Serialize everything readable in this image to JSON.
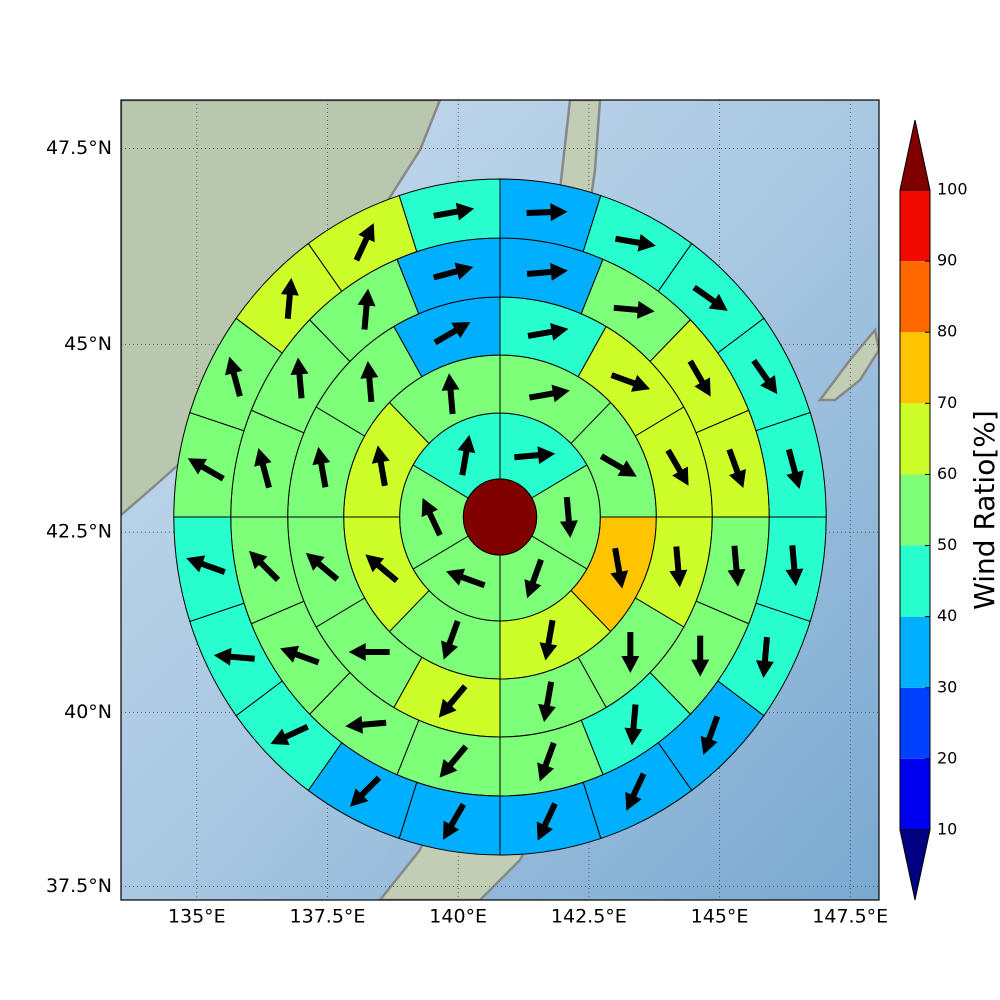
{
  "chart_data": {
    "type": "wind-rose-map",
    "xlim": [
      133.55,
      148.05
    ],
    "ylim": [
      37.3,
      48.1
    ],
    "xticks": [
      {
        "value": 135,
        "label": "135°E"
      },
      {
        "value": 137.5,
        "label": "137.5°E"
      },
      {
        "value": 140,
        "label": "140°E"
      },
      {
        "value": 142.5,
        "label": "142.5°E"
      },
      {
        "value": 145,
        "label": "145°E"
      },
      {
        "value": 147.5,
        "label": "147.5°E"
      }
    ],
    "yticks": [
      {
        "value": 37.5,
        "label": "37.5°N"
      },
      {
        "value": 40,
        "label": "40°N"
      },
      {
        "value": 42.5,
        "label": "42.5°N"
      },
      {
        "value": 45,
        "label": "45°N"
      },
      {
        "value": 47.5,
        "label": "47.5°N"
      }
    ],
    "grid": true,
    "center_color": "#800000",
    "rings": [
      {
        "values": [
          45,
          55,
          55,
          55,
          55,
          45
        ],
        "directions": [
          85,
          175,
          200,
          290,
          335,
          10
        ]
      },
      {
        "values": [
          55,
          55,
          75,
          65,
          55,
          65,
          65,
          55
        ],
        "directions": [
          80,
          120,
          170,
          190,
          200,
          310,
          350,
          355
        ]
      },
      {
        "values": [
          45,
          65,
          65,
          65,
          55,
          55,
          65,
          55,
          55,
          55,
          55,
          35
        ],
        "directions": [
          80,
          110,
          150,
          175,
          180,
          190,
          220,
          270,
          310,
          350,
          355,
          60
        ]
      },
      {
        "values": [
          35,
          55,
          65,
          65,
          55,
          55,
          45,
          55,
          55,
          55,
          55,
          55,
          55,
          55,
          55,
          35
        ],
        "directions": [
          85,
          95,
          150,
          160,
          175,
          180,
          185,
          200,
          220,
          265,
          290,
          315,
          345,
          355,
          5,
          75
        ]
      },
      {
        "values": [
          35,
          45,
          45,
          45,
          45,
          45,
          45,
          35,
          35,
          35,
          35,
          35,
          45,
          45,
          45,
          55,
          55,
          65,
          65,
          45
        ],
        "directions": [
          88,
          100,
          125,
          145,
          165,
          175,
          185,
          200,
          205,
          205,
          210,
          225,
          245,
          275,
          290,
          300,
          345,
          5,
          25,
          80
        ]
      }
    ],
    "colorbar": {
      "label": "Wind Ratio[%]",
      "ticks": [
        10,
        20,
        30,
        40,
        50,
        60,
        70,
        80,
        90,
        100
      ],
      "colors": [
        "#000080",
        "#0000f0",
        "#0040ff",
        "#00b0ff",
        "#29ffce",
        "#7dff7a",
        "#cefe29",
        "#ffc400",
        "#ff6800",
        "#f00a00",
        "#800000"
      ]
    }
  }
}
